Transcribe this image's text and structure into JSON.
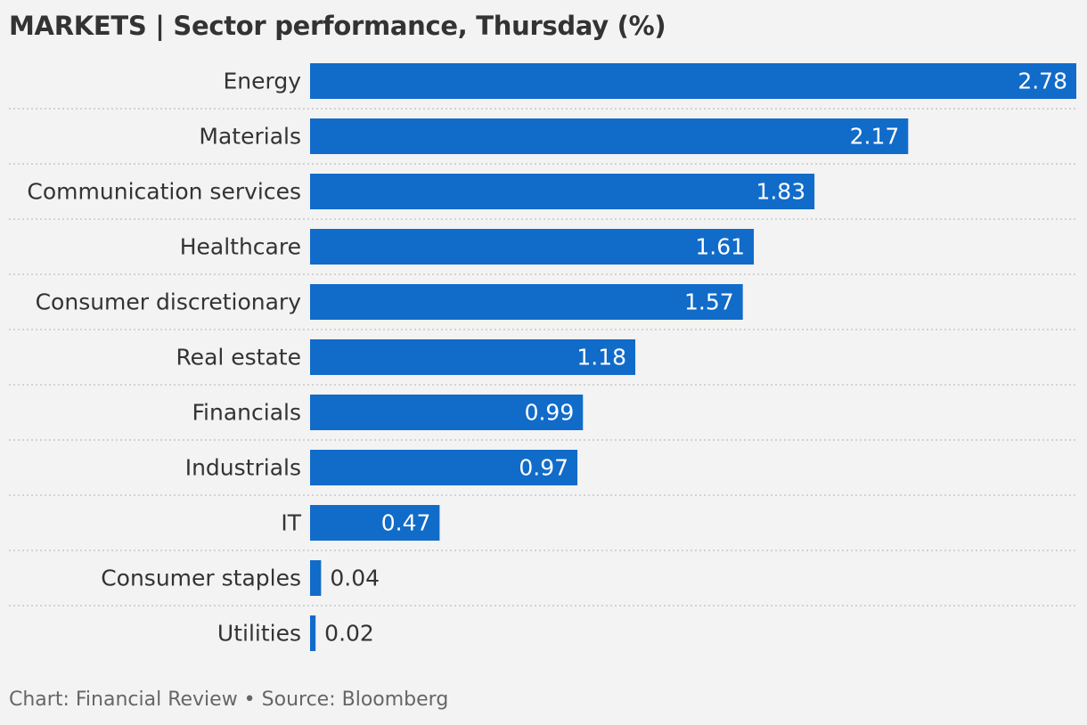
{
  "header": {
    "title": "MARKETS | Sector performance, Thursday (%)"
  },
  "footer": {
    "credit": "Chart: Financial Review • Source: Bloomberg"
  },
  "colors": {
    "bar": "#116bc9",
    "background": "#f3f3f3",
    "text": "#333333",
    "value_inside": "#ffffff",
    "gridline": "#c8c8c8"
  },
  "chart_data": {
    "type": "bar",
    "orientation": "horizontal",
    "title": "MARKETS | Sector performance, Thursday (%)",
    "categories": [
      "Energy",
      "Materials",
      "Communication services",
      "Healthcare",
      "Consumer discretionary",
      "Real estate",
      "Financials",
      "Industrials",
      "IT",
      "Consumer staples",
      "Utilities"
    ],
    "values": [
      2.78,
      2.17,
      1.83,
      1.61,
      1.57,
      1.18,
      0.99,
      0.97,
      0.47,
      0.04,
      0.02
    ],
    "value_labels": [
      "2.78",
      "2.17",
      "1.83",
      "1.61",
      "1.57",
      "1.18",
      "0.99",
      "0.97",
      "0.47",
      "0.04",
      "0.02"
    ],
    "xlim": [
      0,
      2.78
    ],
    "grid": "dotted separators between rows",
    "legend": "none"
  }
}
